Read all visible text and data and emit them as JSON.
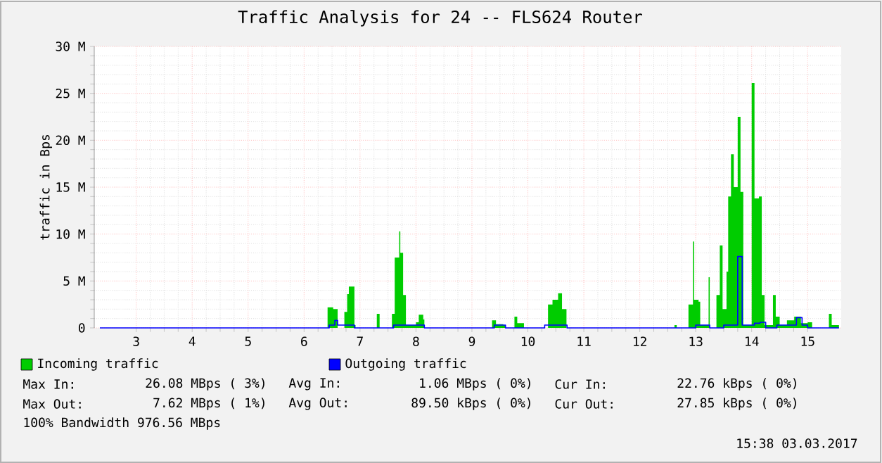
{
  "chart_data": {
    "type": "area",
    "title": "Traffic Analysis for 24 -- FLS624 Router",
    "ylabel": "traffic in Bps",
    "xlim": [
      2.25,
      15.6
    ],
    "ylim": [
      0,
      30
    ],
    "xticks": [
      3,
      4,
      5,
      6,
      7,
      8,
      9,
      10,
      11,
      12,
      13,
      14,
      15
    ],
    "yticks": [
      {
        "value": 0,
        "label": "0"
      },
      {
        "value": 5,
        "label": "5 M"
      },
      {
        "value": 10,
        "label": "10 M"
      },
      {
        "value": 15,
        "label": "15 M"
      },
      {
        "value": 20,
        "label": "20 M"
      },
      {
        "value": 25,
        "label": "25 M"
      },
      {
        "value": 30,
        "label": "30 M"
      }
    ],
    "grid": true,
    "legend": "bottom",
    "series": [
      {
        "name": "Incoming traffic",
        "color": "#00cc00",
        "x": [
          2.25,
          6.42,
          6.52,
          6.6,
          6.72,
          6.77,
          6.8,
          6.9,
          6.92,
          7.05,
          7.3,
          7.35,
          7.57,
          7.62,
          7.7,
          7.72,
          7.77,
          7.82,
          7.92,
          8.0,
          8.05,
          8.13,
          8.15,
          9.36,
          9.43,
          9.56,
          9.6,
          9.76,
          9.81,
          9.93,
          10.36,
          10.44,
          10.54,
          10.61,
          10.69,
          12.62,
          12.66,
          12.87,
          12.95,
          12.97,
          13.05,
          13.08,
          13.23,
          13.25,
          13.37,
          13.43,
          13.48,
          13.55,
          13.58,
          13.63,
          13.68,
          13.75,
          13.8,
          13.85,
          14.0,
          14.05,
          14.13,
          14.18,
          14.23,
          14.38,
          14.43,
          14.5,
          14.63,
          14.76,
          14.88,
          15.0,
          15.08,
          15.38,
          15.43,
          15.56
        ],
        "values": [
          0,
          2.2,
          2,
          0,
          1.7,
          3.6,
          4.4,
          0.3,
          0,
          0,
          1.5,
          0,
          1.5,
          7.5,
          10.3,
          8,
          3.5,
          0.3,
          0.3,
          0.6,
          1.4,
          0.9,
          0,
          0.8,
          0.4,
          0.3,
          0,
          1.2,
          0.5,
          0,
          2.5,
          3,
          3.7,
          2,
          0,
          0.3,
          0,
          2.5,
          9.2,
          3,
          2.8,
          0.3,
          5.4,
          0,
          3.5,
          8.8,
          2,
          6,
          14,
          18.5,
          15,
          22.5,
          14.5,
          0.3,
          26.1,
          13.8,
          14,
          3.5,
          0.3,
          3.5,
          1.2,
          0.3,
          0.8,
          1.2,
          0.5,
          0.6,
          0,
          1.5,
          0.3,
          0
        ]
      },
      {
        "name": "Outgoing traffic",
        "color": "#0000ff",
        "type": "step",
        "x": [
          2.35,
          6.45,
          6.55,
          6.6,
          6.75,
          6.9,
          7.6,
          8.15,
          9.4,
          9.6,
          10.3,
          10.7,
          13.0,
          13.25,
          13.5,
          13.75,
          13.83,
          14.05,
          14.15,
          14.25,
          14.45,
          14.7,
          14.8,
          14.9,
          15.0,
          15.56
        ],
        "values": [
          0,
          0.3,
          0.8,
          0.3,
          0.3,
          0,
          0.3,
          0,
          0.3,
          0,
          0.3,
          0,
          0.3,
          0,
          0.3,
          7.6,
          0.3,
          0.5,
          0.6,
          0,
          0.3,
          0.3,
          1.1,
          0.3,
          0,
          0
        ]
      }
    ],
    "annotations": [
      "Max In:",
      "26.08 MBps ( 3%)",
      "Avg In:",
      "1.06 MBps ( 0%)",
      "Cur In:",
      "22.76 kBps ( 0%)",
      "Max Out:",
      "7.62 MBps ( 1%)",
      "Avg Out:",
      "89.50 kBps ( 0%)",
      "Cur Out:",
      "27.85 kBps ( 0%)",
      "100% Bandwidth 976.56 MBps",
      "15:38 03.03.2017"
    ]
  }
}
